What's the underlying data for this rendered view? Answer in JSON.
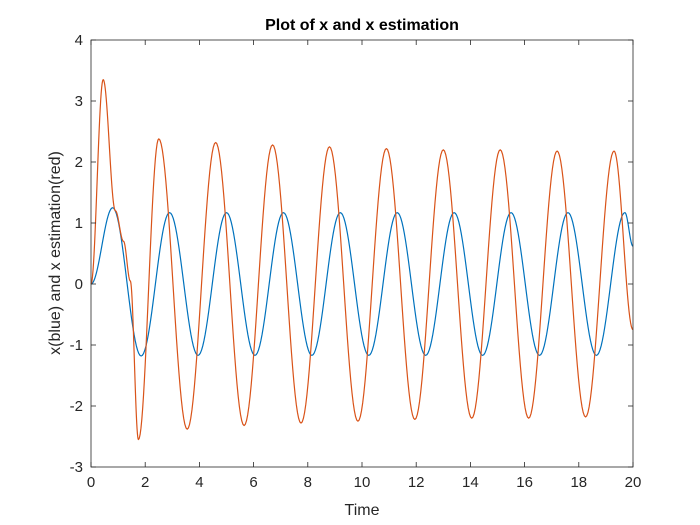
{
  "chart_data": {
    "type": "line",
    "title": "Plot of x and x estimation",
    "xlabel": "Time",
    "ylabel": "x(blue) and x estimation(red)",
    "xlim": [
      0,
      20
    ],
    "ylim": [
      -3,
      4
    ],
    "xticks": [
      0,
      2,
      4,
      6,
      8,
      10,
      12,
      14,
      16,
      18,
      20
    ],
    "yticks": [
      -3,
      -2,
      -1,
      0,
      1,
      2,
      3,
      4
    ],
    "grid": false,
    "legend": "none",
    "series": [
      {
        "color": "#0072BD",
        "x": [
          0,
          0.8,
          1.85,
          2.9,
          3.95,
          5.0,
          6.05,
          7.1,
          8.15,
          9.2,
          10.25,
          11.3,
          12.35,
          13.4,
          14.45,
          15.5,
          16.55,
          17.6,
          18.65,
          19.7,
          20
        ],
        "y": [
          0,
          1.25,
          -1.18,
          1.17,
          -1.17,
          1.17,
          -1.17,
          1.17,
          -1.17,
          1.17,
          -1.17,
          1.17,
          -1.17,
          1.17,
          -1.17,
          1.17,
          -1.17,
          1.17,
          -1.17,
          1.17,
          0.62
        ]
      },
      {
        "color": "#D95319",
        "x": [
          0,
          0.45,
          0.9,
          1.2,
          1.45,
          1.75,
          2.5,
          3.55,
          4.6,
          5.65,
          6.7,
          7.75,
          8.8,
          9.85,
          10.9,
          11.95,
          13.0,
          14.05,
          15.1,
          16.15,
          17.2,
          18.25,
          19.3,
          20
        ],
        "y": [
          0,
          3.35,
          1.2,
          0.7,
          0.05,
          -2.55,
          2.38,
          -2.38,
          2.32,
          -2.32,
          2.28,
          -2.28,
          2.25,
          -2.25,
          2.22,
          -2.22,
          2.2,
          -2.2,
          2.2,
          -2.2,
          2.18,
          -2.18,
          2.18,
          -0.75
        ]
      }
    ]
  }
}
